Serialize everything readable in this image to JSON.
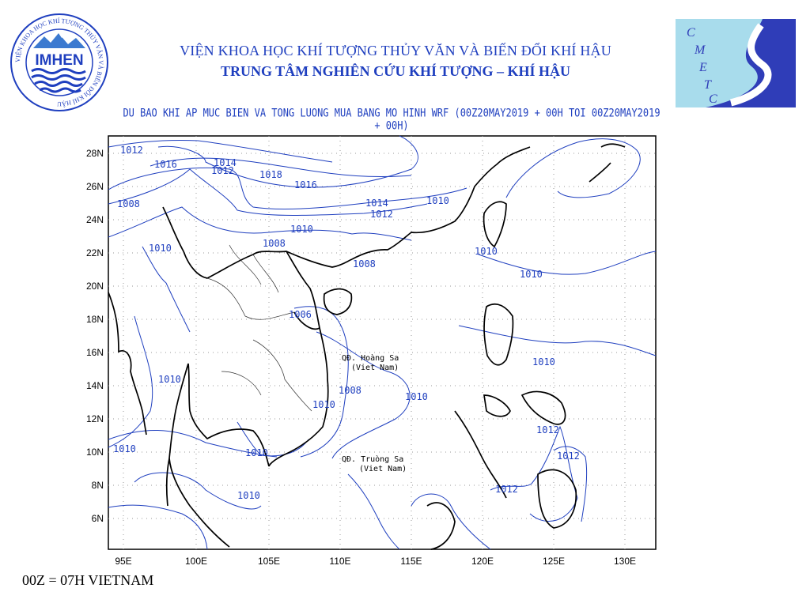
{
  "header": {
    "institute_name": "VIỆN KHOA HỌC KHÍ TƯỢNG THỦY VĂN VÀ BIẾN ĐỔI KHÍ HẬU",
    "center_name": "TRUNG TÂM NGHIÊN CỨU KHÍ TƯỢNG – KHÍ HẬU",
    "forecast_title": "DU BAO KHI AP MUC BIEN VA TONG LUONG MUA BANG MO HINH WRF (00Z20MAY2019 + 00H TOI 00Z20MAY2019 + 00H)"
  },
  "logos": {
    "left": {
      "text": "IMHEN",
      "ring_text": "VIỆN KHOA HỌC KHÍ TƯỢNG THỦY VĂN VÀ BIẾN ĐỔI KHÍ HẬU"
    },
    "right": {
      "letters": [
        "C",
        "M",
        "E",
        "T",
        "C"
      ]
    }
  },
  "map": {
    "lon_labels": [
      "95E",
      "100E",
      "105E",
      "110E",
      "115E",
      "120E",
      "125E",
      "130E"
    ],
    "lat_labels": [
      "28N",
      "26N",
      "24N",
      "22N",
      "20N",
      "18N",
      "16N",
      "14N",
      "12N",
      "10N",
      "8N",
      "6N"
    ],
    "islands": [
      {
        "name": "QĐ. Hoàng Sa",
        "sub": "(Viet Nam)"
      },
      {
        "name": "QĐ. Truòng Sa",
        "sub": "(Viet Nam)"
      }
    ],
    "isobar_labels": [
      "1012",
      "1016",
      "1014",
      "1012",
      "1018",
      "1016",
      "1014",
      "1012",
      "1010",
      "1008",
      "1010",
      "1010",
      "1008",
      "1010",
      "1008",
      "1006",
      "1010",
      "1008",
      "1010",
      "1010",
      "1010",
      "1010",
      "1012",
      "1012",
      "1012",
      "1010",
      "1010",
      "1010"
    ],
    "colors": {
      "isobar": "#1f3fbf",
      "coastline": "#000000",
      "border": "#333333"
    }
  },
  "footer": {
    "time_note": "00Z = 07H VIETNAM"
  }
}
